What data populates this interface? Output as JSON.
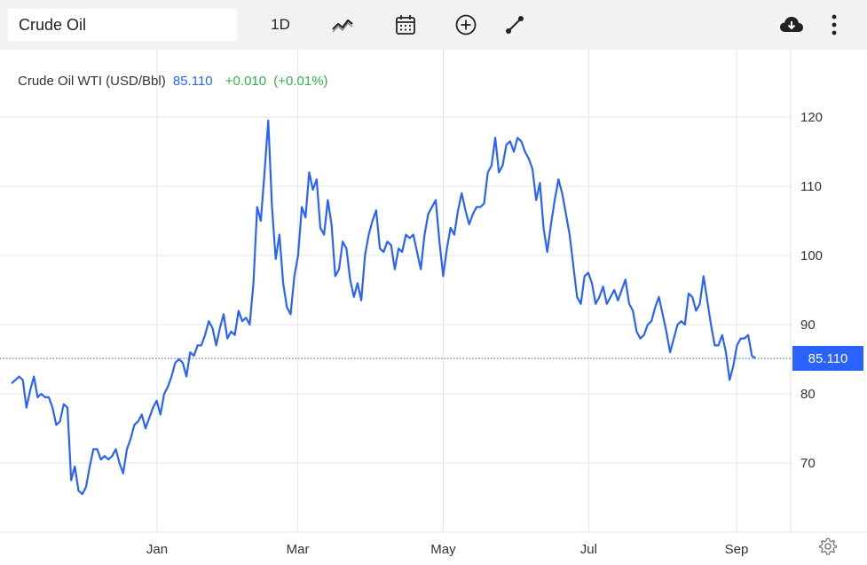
{
  "toolbar": {
    "symbol_value": "Crude Oil",
    "interval_label": "1D",
    "icons": [
      "chart-type-icon",
      "calendar-icon",
      "add-indicator-icon",
      "drawing-tool-icon",
      "download-icon",
      "more-options-icon"
    ]
  },
  "quote": {
    "name": "Crude Oil WTI (USD/Bbl)",
    "price": "85.110",
    "change": "+0.010",
    "change_pct": "(+0.01%)"
  },
  "colors": {
    "line": "#2962ff",
    "positive": "#2db34a",
    "grid": "#e6e6e6"
  },
  "chart_data": {
    "type": "line",
    "series": [
      {
        "values": [
          81.5,
          82,
          82.5,
          82,
          78,
          80.5,
          82.5,
          79.5,
          80,
          79.5,
          79.5,
          78,
          75.5,
          76,
          78.5,
          78,
          67.5,
          69.5,
          66,
          65.5,
          66.5,
          69.5,
          72,
          72,
          70.5,
          71,
          70.5,
          71,
          72,
          70,
          68.5,
          72,
          73.5,
          75.5,
          76,
          77,
          75,
          76.5,
          78,
          79,
          77,
          80,
          81,
          82.5,
          84.5,
          85,
          84.5,
          82.5,
          86,
          85.5,
          87,
          87,
          88.5,
          90.5,
          89.5,
          87,
          89.5,
          91.5,
          88,
          89,
          88.5,
          92,
          90.5,
          91,
          90,
          96,
          107,
          105,
          112,
          119.5,
          107,
          99.5,
          103,
          96,
          92.5,
          91.5,
          97,
          100,
          107,
          105.5,
          112,
          109.5,
          111,
          104,
          103,
          108,
          104.5,
          97,
          98,
          102,
          101,
          96.5,
          94,
          96,
          93.5,
          100,
          103,
          105,
          106.5,
          101,
          100.5,
          102,
          101.5,
          98,
          101,
          100.5,
          103,
          102.5,
          103,
          100.5,
          98,
          103,
          106,
          107,
          108,
          102,
          97,
          101,
          104,
          103,
          106.5,
          109,
          106.5,
          104.5,
          106,
          107,
          107,
          107.5,
          112,
          113,
          117,
          112,
          113,
          116,
          116.5,
          115,
          117,
          116.5,
          115,
          114,
          112.5,
          108,
          110.5,
          104,
          100.5,
          104.5,
          108,
          111,
          109,
          106,
          103,
          98.5,
          94,
          93,
          97,
          97.5,
          96,
          93,
          94,
          95.5,
          93,
          94,
          95,
          93.5,
          95,
          96.5,
          93,
          92,
          89,
          88,
          88.5,
          90,
          90.5,
          92.5,
          94,
          91.5,
          89,
          86,
          88,
          90,
          90.5,
          90,
          94.5,
          94,
          92,
          93,
          97,
          93.5,
          90,
          87,
          87,
          88.5,
          86,
          82,
          84,
          87,
          88,
          88,
          88.5,
          85.5,
          85.11
        ],
        "start": "2021-11-01",
        "end": "2022-09-09"
      }
    ],
    "x_ticks": [
      "Jan",
      "Mar",
      "May",
      "Jul",
      "Sep"
    ],
    "y_ticks": [
      70,
      80,
      90,
      100,
      110,
      120
    ],
    "last_value": "85.110",
    "ylim": [
      62,
      127
    ],
    "grid": true,
    "legend": "none"
  }
}
